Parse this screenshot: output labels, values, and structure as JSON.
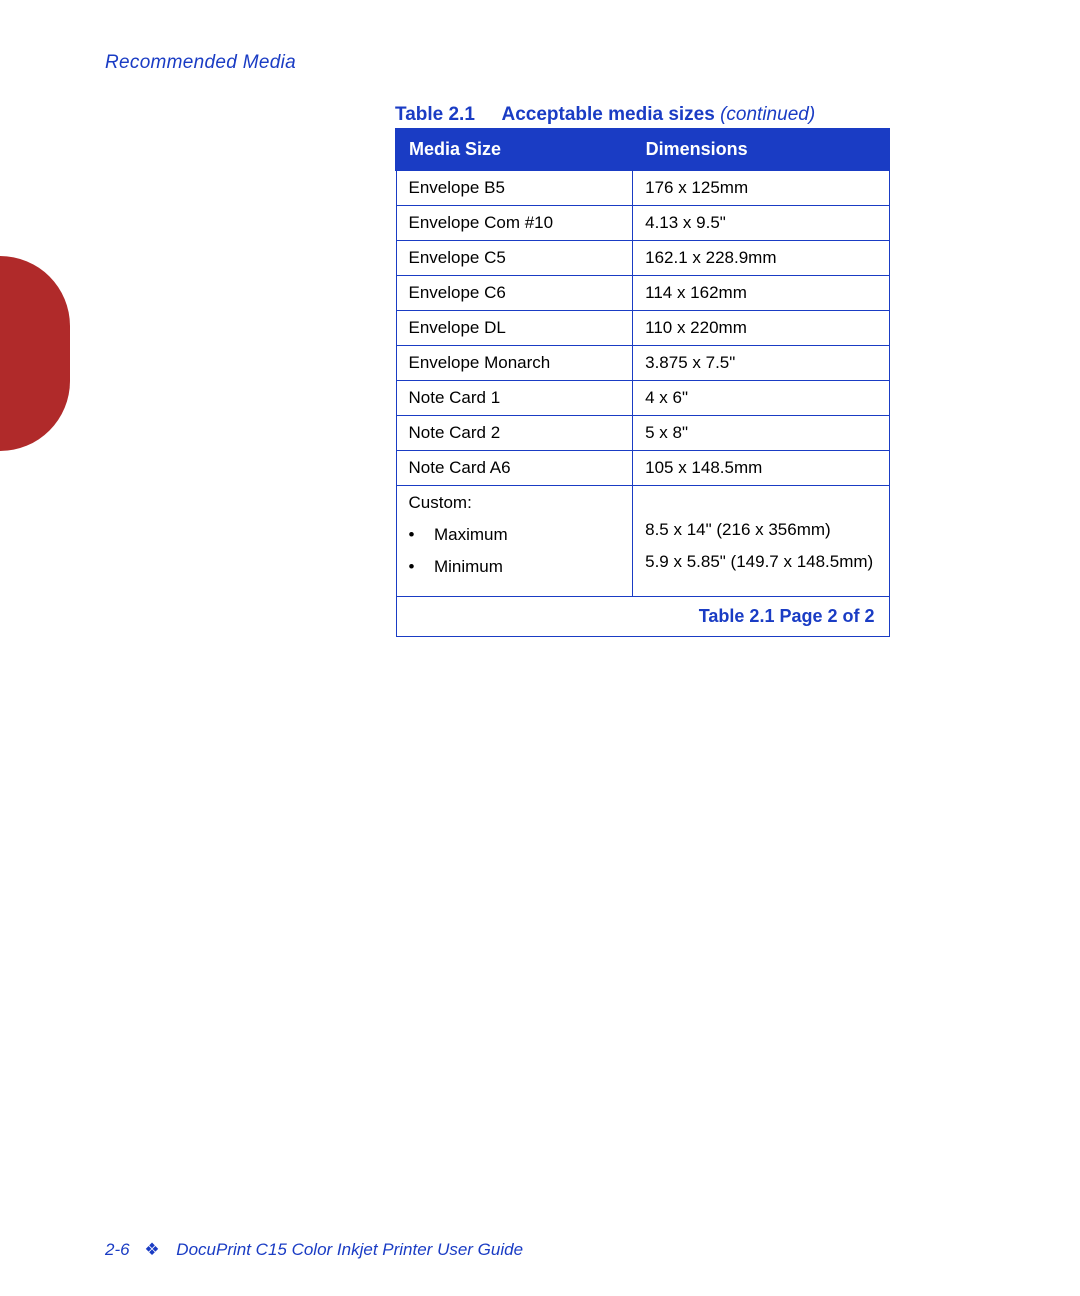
{
  "colors": {
    "accent": "#1a3cc4",
    "header_bg": "#1a3cc4",
    "header_text": "#ffffff",
    "body_text": "#000000",
    "tab": "#b02a2a",
    "page_bg": "#ffffff"
  },
  "header": {
    "section": "Recommended Media"
  },
  "table": {
    "caption_prefix": "Table 2.1",
    "caption_title": "Acceptable media sizes",
    "caption_suffix": "(continued)",
    "columns": [
      "Media Size",
      "Dimensions"
    ],
    "rows": [
      {
        "size": "Envelope B5",
        "dim": "176 x 125mm"
      },
      {
        "size": "Envelope Com #10",
        "dim": "4.13 x 9.5\""
      },
      {
        "size": "Envelope C5",
        "dim": "162.1 x 228.9mm"
      },
      {
        "size": "Envelope C6",
        "dim": "114 x 162mm"
      },
      {
        "size": "Envelope DL",
        "dim": "110 x 220mm"
      },
      {
        "size": "Envelope Monarch",
        "dim": "3.875 x 7.5\""
      },
      {
        "size": "Note Card 1",
        "dim": "4 x 6\""
      },
      {
        "size": "Note Card 2",
        "dim": "5 x 8\""
      },
      {
        "size": "Note Card A6",
        "dim": "105 x 148.5mm"
      }
    ],
    "custom": {
      "label": "Custom:",
      "items": [
        {
          "name": "Maximum",
          "dim": "8.5 x 14\"  (216 x 356mm)"
        },
        {
          "name": "Minimum",
          "dim": "5.9 x 5.85\"  (149.7 x 148.5mm)"
        }
      ]
    },
    "footer": "Table 2.1  Page 2 of 2"
  },
  "footer": {
    "page_num": "2-6",
    "symbol": "❖",
    "doc_title": "DocuPrint C15 Color Inkjet Printer User Guide"
  }
}
